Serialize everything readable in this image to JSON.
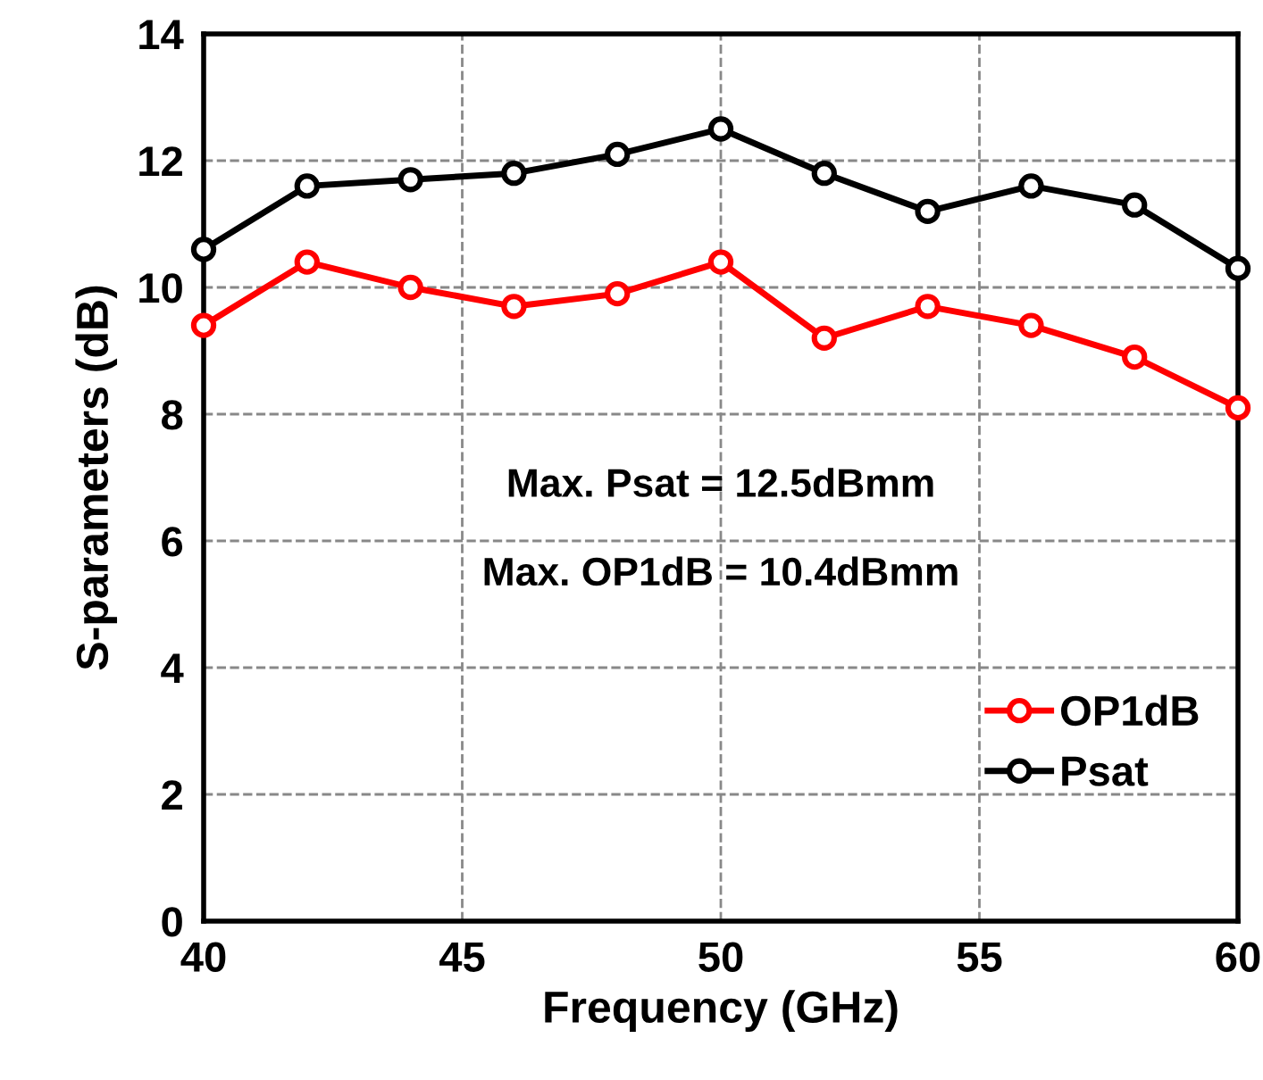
{
  "chart_data": {
    "type": "line",
    "xlabel": "Frequency (GHz)",
    "ylabel": "S-parameters (dB)",
    "x": [
      40,
      42,
      44,
      46,
      48,
      50,
      52,
      54,
      56,
      58,
      60
    ],
    "series": [
      {
        "name": "OP1dB",
        "color": "#ff0000",
        "values": [
          9.4,
          10.4,
          10.0,
          9.7,
          9.9,
          10.4,
          9.2,
          9.7,
          9.4,
          8.9,
          8.1
        ]
      },
      {
        "name": "Psat",
        "color": "#000000",
        "values": [
          10.6,
          11.6,
          11.7,
          11.8,
          12.1,
          12.5,
          11.8,
          11.2,
          11.6,
          11.3,
          10.3
        ]
      }
    ],
    "xlim": [
      40,
      60
    ],
    "xticks": [
      40,
      45,
      50,
      55,
      60
    ],
    "ylim": [
      0,
      14
    ],
    "yticks": [
      0,
      2,
      4,
      6,
      8,
      10,
      12,
      14
    ],
    "grid": true,
    "legend": "bottom right",
    "marker": "circle",
    "line_style": "solid",
    "annotations": [
      "Max. Psat = 12.5dBmm",
      "Max. OP1dB = 10.4dBmm"
    ]
  }
}
